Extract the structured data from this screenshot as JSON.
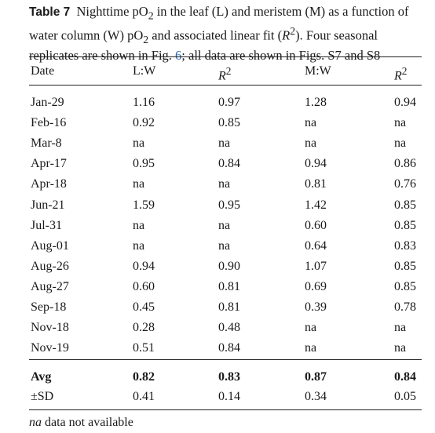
{
  "caption": {
    "label": "Table 7",
    "seg1": "Nighttime pO",
    "seg2": " in the leaf (L) and meristem (M) as a function of water column (W) pO",
    "seg3": " and associated linear fit (",
    "r": "R",
    "seg4": "). Four seasonal replicates are shown in Fig. ",
    "fig_ref": "6",
    "seg5": "; all data are shown in Figs. S7 and S8",
    "sub": "2",
    "sup": "2"
  },
  "table": {
    "headers": [
      "Date",
      "L:W",
      "R",
      "M:W",
      "R"
    ],
    "rows": [
      [
        "Jan-29",
        "1.16",
        "0.97",
        "1.28",
        "0.94"
      ],
      [
        "Feb-16",
        "0.92",
        "0.85",
        "na",
        "na"
      ],
      [
        "Mar-8",
        "na",
        "na",
        "na",
        "na"
      ],
      [
        "Apr-17",
        "0.95",
        "0.84",
        "0.94",
        "0.86"
      ],
      [
        "Apr-18",
        "na",
        "na",
        "0.81",
        "0.76"
      ],
      [
        "Jun-21",
        "1.59",
        "0.95",
        "1.42",
        "0.85"
      ],
      [
        "Jul-31",
        "na",
        "na",
        "0.60",
        "0.85"
      ],
      [
        "Aug-01",
        "na",
        "na",
        "0.64",
        "0.83"
      ],
      [
        "Aug-26",
        "0.94",
        "0.90",
        "1.07",
        "0.85"
      ],
      [
        "Aug-27",
        "0.60",
        "0.81",
        "0.69",
        "0.85"
      ],
      [
        "Sep-18",
        "0.45",
        "0.81",
        "0.39",
        "0.78"
      ],
      [
        "Nov-18",
        "0.28",
        "0.48",
        "na",
        "na"
      ],
      [
        "Nov-19",
        "0.51",
        "0.84",
        "na",
        "na"
      ]
    ],
    "avg": [
      "Avg",
      "0.82",
      "0.83",
      "0.87",
      "0.84"
    ],
    "sd": [
      "±SD",
      "0.41",
      "0.14",
      "0.34",
      "0.05"
    ]
  },
  "footnote": {
    "term": "na",
    "text": " data not available"
  }
}
